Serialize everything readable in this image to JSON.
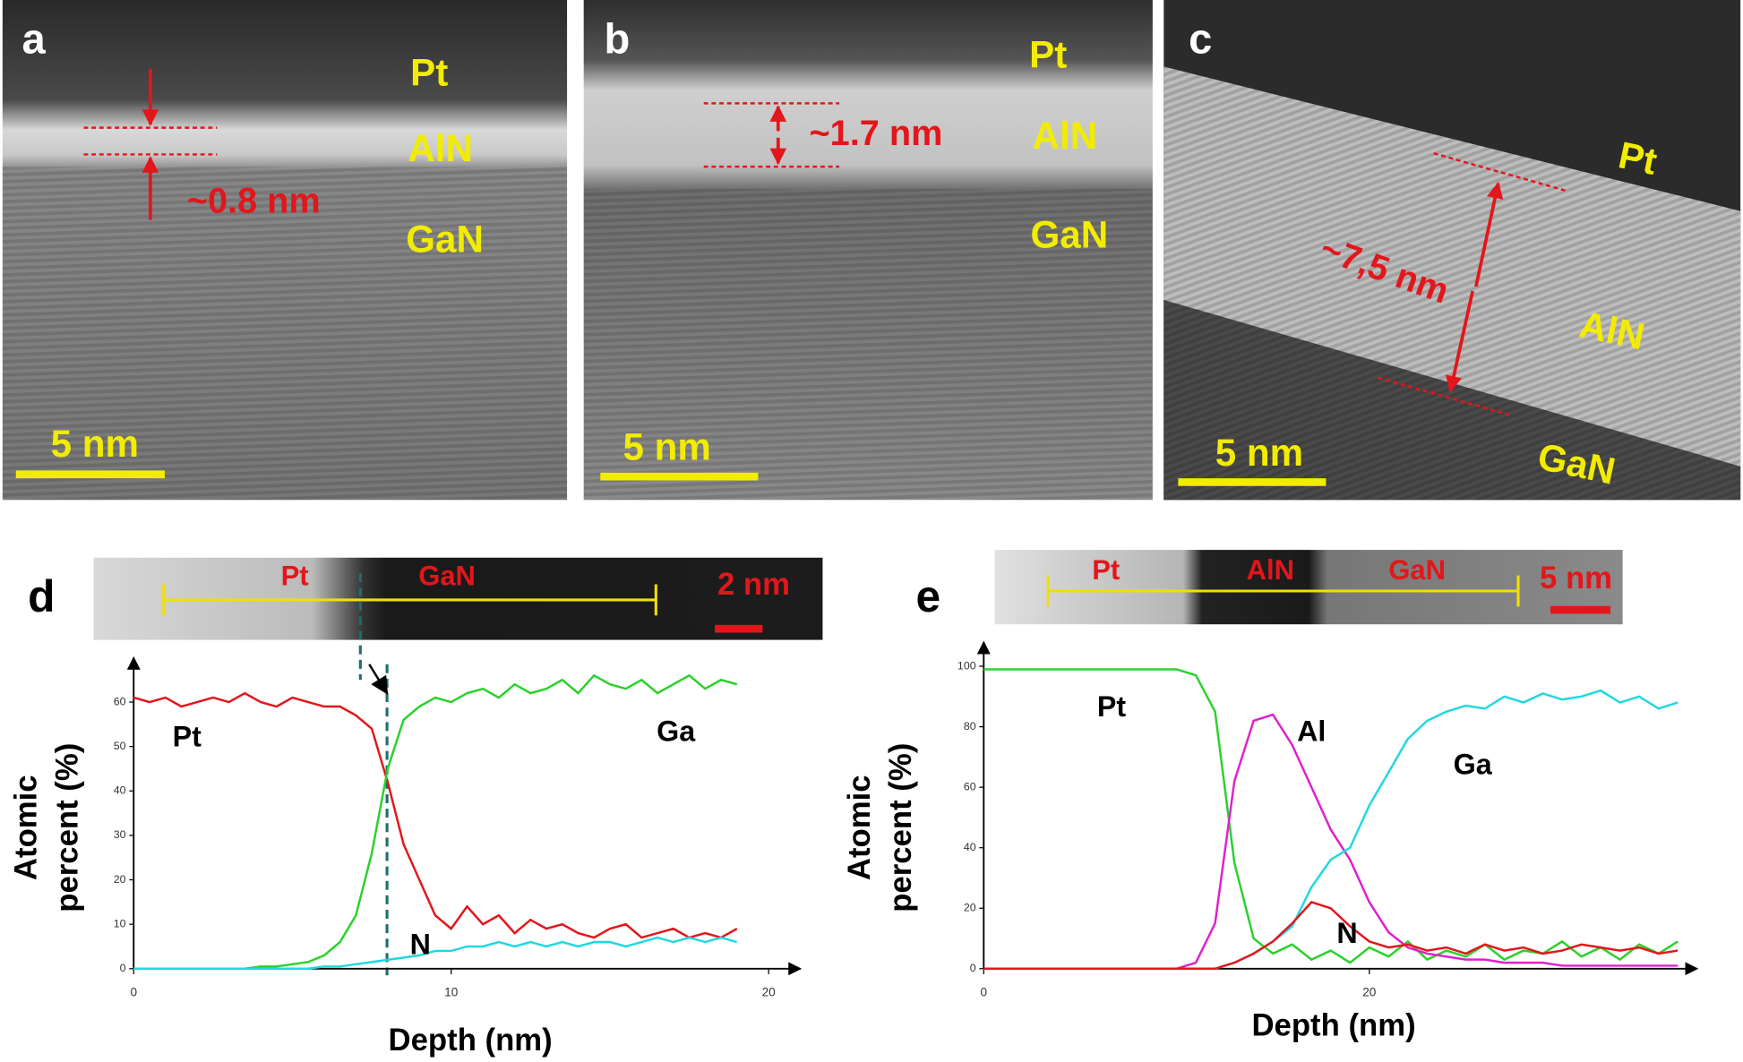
{
  "panels": [
    {
      "letter": "a",
      "layers": [
        "Pt",
        "AlN",
        "GaN"
      ],
      "thickness": "~0.8 nm",
      "scale_bar": "5 nm"
    },
    {
      "letter": "b",
      "layers": [
        "Pt",
        "AlN",
        "GaN"
      ],
      "thickness": "~1.7 nm",
      "scale_bar": "5 nm"
    },
    {
      "letter": "c",
      "layers": [
        "Pt",
        "AlN",
        "GaN"
      ],
      "thickness": "~7,5 nm",
      "scale_bar": "5 nm"
    }
  ],
  "chart_data": [
    {
      "type": "line",
      "letter": "d",
      "inset": {
        "labels": [
          "Pt",
          "GaN"
        ],
        "scale_bar": "2 nm"
      },
      "x_label": "Depth (nm)",
      "y_label": [
        "Atomic",
        "percent (%)"
      ],
      "x": [
        0,
        0.5,
        1,
        1.5,
        2,
        2.5,
        3,
        3.5,
        4,
        4.5,
        5,
        5.5,
        6,
        6.5,
        7,
        7.5,
        8,
        8.5,
        9,
        9.5,
        10,
        10.5,
        11,
        11.5,
        12,
        12.5,
        13,
        13.5,
        14,
        14.5,
        15,
        15.5,
        16,
        16.5,
        17,
        17.5,
        18,
        18.5,
        19
      ],
      "xlim": [
        0,
        21
      ],
      "xticks": [
        0,
        10,
        20
      ],
      "ylim": [
        0,
        70
      ],
      "yticks": [
        0,
        10,
        20,
        30,
        40,
        50,
        60
      ],
      "series": [
        {
          "name": "Pt",
          "color": "#e3161b",
          "values": [
            61,
            60,
            61,
            59,
            60,
            61,
            60,
            62,
            60,
            59,
            61,
            60,
            59,
            59,
            57,
            54,
            42,
            28,
            20,
            12,
            9,
            14,
            10,
            12,
            8,
            11,
            9,
            10,
            8,
            7,
            9,
            10,
            7,
            8,
            9,
            7,
            8,
            7,
            9
          ]
        },
        {
          "name": "Ga",
          "color": "#2bd12b",
          "values": [
            0,
            0,
            0,
            0,
            0,
            0,
            0,
            0,
            0.5,
            0.5,
            1,
            1.5,
            3,
            6,
            12,
            26,
            45,
            56,
            59,
            61,
            60,
            62,
            63,
            61,
            64,
            62,
            63,
            65,
            62,
            66,
            64,
            63,
            65,
            62,
            64,
            66,
            63,
            65,
            64
          ]
        },
        {
          "name": "N",
          "color": "#20d8e0",
          "values": [
            0,
            0,
            0,
            0,
            0,
            0,
            0,
            0,
            0,
            0,
            0,
            0,
            0.5,
            0.5,
            1,
            1.5,
            2,
            2.5,
            3,
            4,
            4,
            5,
            5,
            6,
            5,
            6,
            5,
            6,
            5,
            6,
            6,
            5,
            6,
            7,
            6,
            7,
            6,
            7,
            6
          ]
        }
      ]
    },
    {
      "type": "line",
      "letter": "e",
      "inset": {
        "labels": [
          "Pt",
          "AlN",
          "GaN"
        ],
        "scale_bar": "5 nm"
      },
      "x_label": "Depth (nm)",
      "y_label": [
        "Atomic",
        "percent (%)"
      ],
      "x": [
        0,
        1,
        2,
        3,
        4,
        5,
        6,
        7,
        8,
        9,
        10,
        11,
        12,
        13,
        14,
        15,
        16,
        17,
        18,
        19,
        20,
        21,
        22,
        23,
        24,
        25,
        26,
        27,
        28,
        29,
        30,
        31,
        32,
        33,
        34,
        35,
        36
      ],
      "xlim": [
        0,
        37
      ],
      "xticks": [
        0,
        20
      ],
      "ylim": [
        0,
        108
      ],
      "yticks": [
        0,
        20,
        40,
        60,
        80,
        100
      ],
      "series": [
        {
          "name": "Pt",
          "color": "#2bd12b",
          "values": [
            99,
            99,
            99,
            99,
            99,
            99,
            99,
            99,
            99,
            99,
            99,
            97,
            85,
            35,
            10,
            5,
            8,
            3,
            6,
            2,
            7,
            4,
            9,
            3,
            6,
            4,
            8,
            3,
            6,
            5,
            9,
            4,
            7,
            3,
            8,
            5,
            9
          ]
        },
        {
          "name": "Al",
          "color": "#e020d0",
          "values": [
            0,
            0,
            0,
            0,
            0,
            0,
            0,
            0,
            0,
            0,
            0,
            2,
            15,
            62,
            82,
            84,
            74,
            60,
            46,
            36,
            22,
            12,
            7,
            5,
            4,
            3,
            3,
            2,
            2,
            2,
            1,
            1,
            1,
            1,
            1,
            1,
            1
          ]
        },
        {
          "name": "Ga",
          "color": "#20d8e0",
          "values": [
            0,
            0,
            0,
            0,
            0,
            0,
            0,
            0,
            0,
            0,
            0,
            0,
            0,
            2,
            5,
            9,
            14,
            27,
            36,
            40,
            54,
            65,
            76,
            82,
            85,
            87,
            86,
            90,
            88,
            91,
            89,
            90,
            92,
            88,
            90,
            86,
            88
          ]
        },
        {
          "name": "N",
          "color": "#e3161b",
          "values": [
            0,
            0,
            0,
            0,
            0,
            0,
            0,
            0,
            0,
            0,
            0,
            0,
            0,
            2,
            5,
            9,
            15,
            22,
            20,
            14,
            9,
            7,
            8,
            6,
            7,
            5,
            8,
            6,
            7,
            5,
            6,
            8,
            7,
            6,
            7,
            5,
            6
          ]
        }
      ]
    }
  ]
}
